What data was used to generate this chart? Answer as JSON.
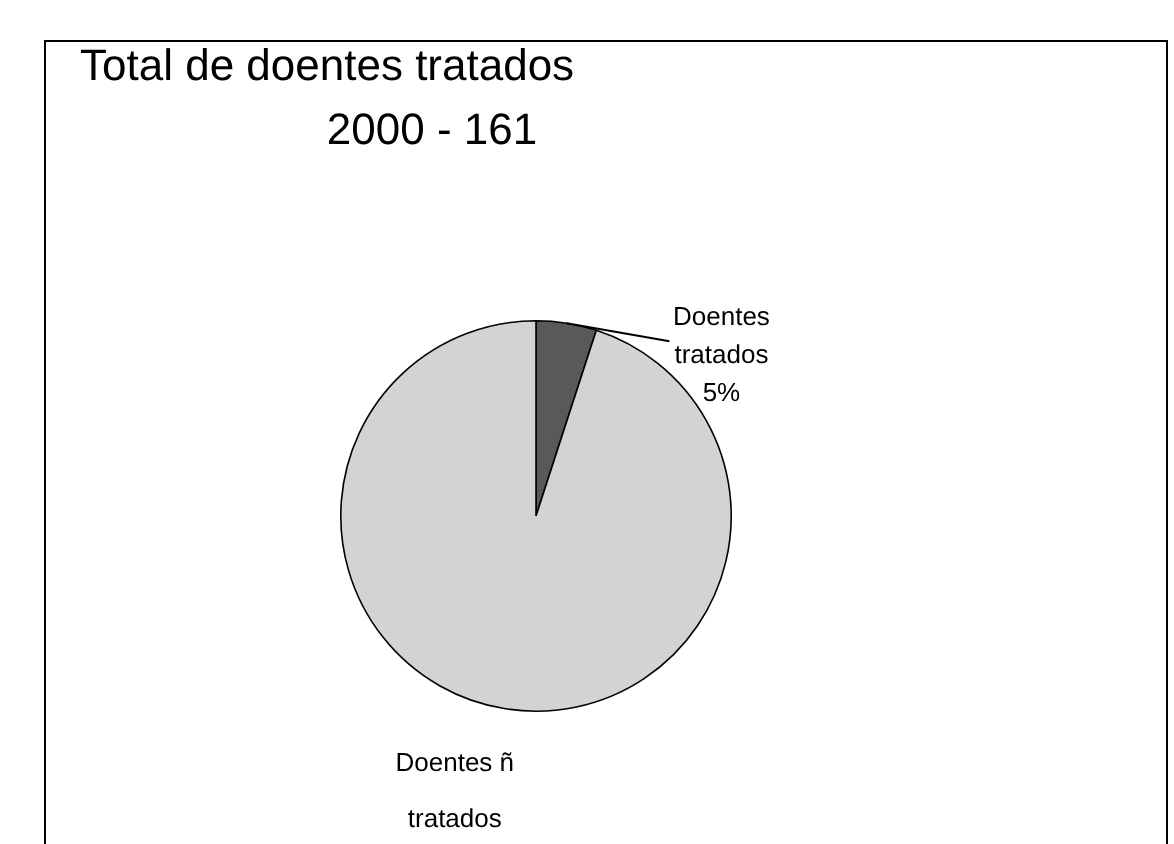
{
  "chart_data": {
    "type": "pie",
    "title": "Total de doentes tratados",
    "subtitle": "2000 - 161",
    "categories": [
      "Doentes tratados",
      "Doentes ñ tratados"
    ],
    "values": [
      5,
      95
    ],
    "colors": [
      "#595959",
      "#d3d3d3"
    ],
    "value_labels": [
      "5%",
      null
    ]
  }
}
